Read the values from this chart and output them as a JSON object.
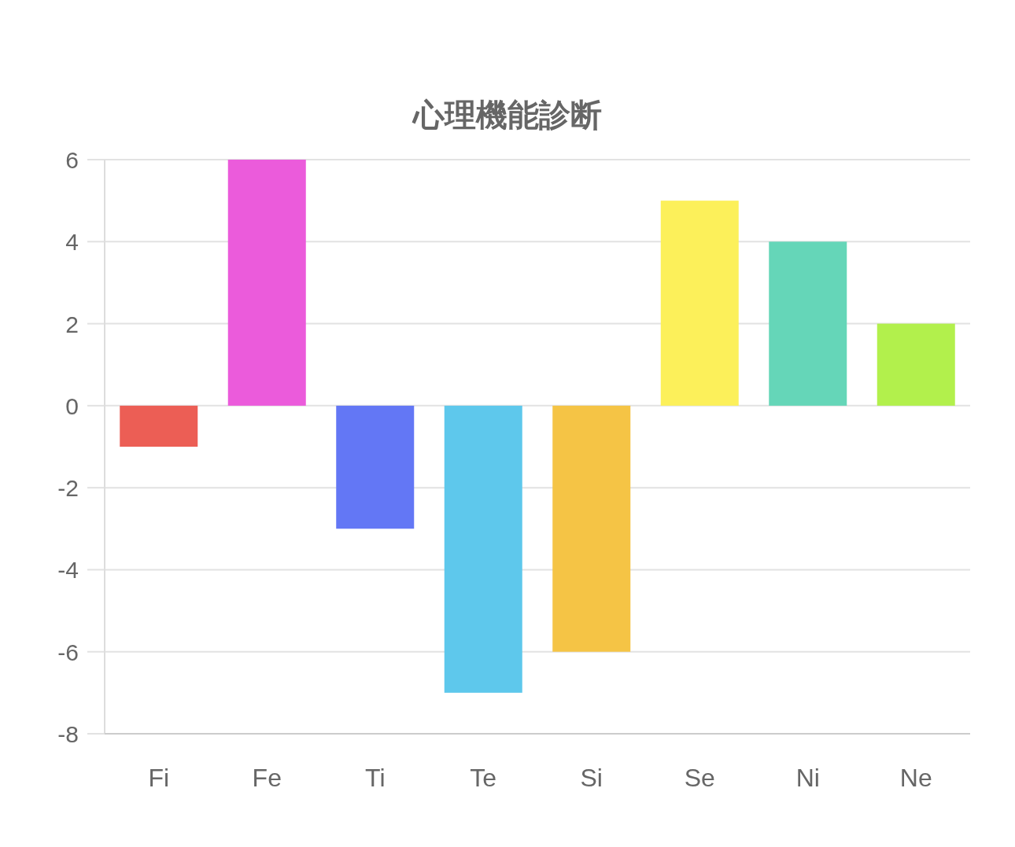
{
  "chart_data": {
    "type": "bar",
    "title": "心理機能診断",
    "categories": [
      "Fi",
      "Fe",
      "Ti",
      "Te",
      "Si",
      "Se",
      "Ni",
      "Ne"
    ],
    "values": [
      -1,
      6,
      -3,
      -7,
      -6,
      5,
      4,
      2
    ],
    "colors": [
      "#ec5e55",
      "#eb5bdb",
      "#6377f5",
      "#5ec8ec",
      "#f5c445",
      "#fcf05a",
      "#65d6b8",
      "#b2f04c"
    ],
    "ylim": [
      -8,
      6
    ],
    "yticks": [
      -8,
      -6,
      -4,
      -2,
      0,
      2,
      4,
      6
    ],
    "grid": "y"
  }
}
